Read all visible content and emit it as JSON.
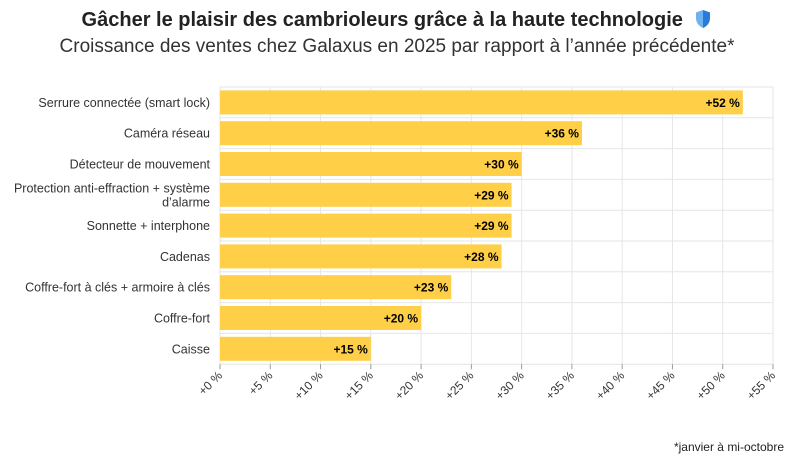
{
  "header": {
    "title": "Gâcher le plaisir des cambrioleurs grâce à la haute technologie",
    "title_icon": "shield-icon",
    "subtitle": "Croissance des ventes chez Galaxus en 2025 par rapport à l’année précédente*"
  },
  "footnote": "*janvier à mi-octobre",
  "colors": {
    "bar": "#FFCF47",
    "grid": "#E6E6E6",
    "shield_light": "#6FB2F2",
    "shield_dark": "#2A7BD8"
  },
  "chart_data": {
    "type": "bar",
    "orientation": "horizontal",
    "categories": [
      "Serrure connectée (smart lock)",
      "Caméra réseau",
      "Détecteur de mouvement",
      "Protection anti-effraction + système d’alarme",
      "Sonnette + interphone",
      "Cadenas",
      "Coffre-fort à clés + armoire à clés",
      "Coffre-fort",
      "Caisse"
    ],
    "category_lines": [
      [
        "Serrure connectée (smart lock)"
      ],
      [
        "Caméra réseau"
      ],
      [
        "Détecteur de mouvement"
      ],
      [
        "Protection anti-effraction + système",
        "d’alarme"
      ],
      [
        "Sonnette + interphone"
      ],
      [
        "Cadenas"
      ],
      [
        "Coffre-fort à clés + armoire à clés"
      ],
      [
        "Coffre-fort"
      ],
      [
        "Caisse"
      ]
    ],
    "values": [
      52,
      36,
      30,
      29,
      29,
      28,
      23,
      20,
      15
    ],
    "data_labels": [
      "+52 %",
      "+36 %",
      "+30 %",
      "+29 %",
      "+29 %",
      "+28 %",
      "+23 %",
      "+20 %",
      "+15 %"
    ],
    "xlim": [
      0,
      55
    ],
    "xticks": [
      0,
      5,
      10,
      15,
      20,
      25,
      30,
      35,
      40,
      45,
      50,
      55
    ],
    "xtick_labels": [
      "+0 %",
      "+5 %",
      "+10 %",
      "+15 %",
      "+20 %",
      "+25 %",
      "+30 %",
      "+35 %",
      "+40 %",
      "+45 %",
      "+50 %",
      "+55 %"
    ],
    "grid": true,
    "legend": "none"
  }
}
